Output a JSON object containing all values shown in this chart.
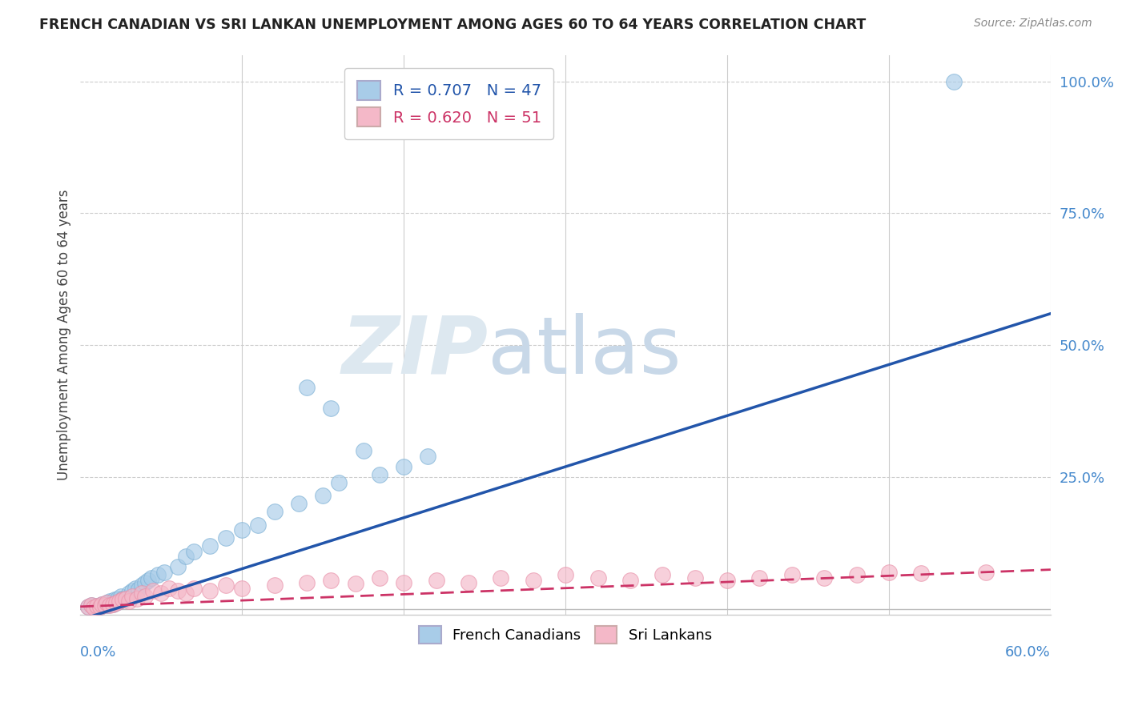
{
  "title": "FRENCH CANADIAN VS SRI LANKAN UNEMPLOYMENT AMONG AGES 60 TO 64 YEARS CORRELATION CHART",
  "source": "Source: ZipAtlas.com",
  "ylabel": "Unemployment Among Ages 60 to 64 years",
  "xlim": [
    0.0,
    0.6
  ],
  "ylim": [
    -0.01,
    1.05
  ],
  "french_canadian_R": 0.707,
  "french_canadian_N": 47,
  "sri_lankan_R": 0.62,
  "sri_lankan_N": 51,
  "fc_color": "#a8cce8",
  "sl_color": "#f4b8c8",
  "fc_edge_color": "#7bafd4",
  "sl_edge_color": "#e890a8",
  "fc_line_color": "#2255aa",
  "sl_line_color": "#cc3366",
  "watermark_zip": "ZIP",
  "watermark_atlas": "atlas",
  "background_color": "#ffffff",
  "fc_scatter_x": [
    0.005,
    0.007,
    0.008,
    0.01,
    0.012,
    0.013,
    0.015,
    0.016,
    0.017,
    0.018,
    0.02,
    0.021,
    0.022,
    0.023,
    0.024,
    0.025,
    0.026,
    0.027,
    0.028,
    0.03,
    0.032,
    0.034,
    0.036,
    0.038,
    0.04,
    0.042,
    0.044,
    0.048,
    0.052,
    0.06,
    0.065,
    0.07,
    0.08,
    0.09,
    0.1,
    0.11,
    0.12,
    0.135,
    0.15,
    0.16,
    0.185,
    0.2,
    0.215,
    0.14,
    0.155,
    0.175,
    0.54
  ],
  "fc_scatter_y": [
    0.005,
    0.008,
    0.003,
    0.006,
    0.004,
    0.01,
    0.008,
    0.012,
    0.007,
    0.015,
    0.01,
    0.018,
    0.012,
    0.02,
    0.015,
    0.025,
    0.02,
    0.018,
    0.022,
    0.03,
    0.035,
    0.04,
    0.038,
    0.045,
    0.05,
    0.055,
    0.06,
    0.065,
    0.07,
    0.08,
    0.1,
    0.11,
    0.12,
    0.135,
    0.15,
    0.16,
    0.185,
    0.2,
    0.215,
    0.24,
    0.255,
    0.27,
    0.29,
    0.42,
    0.38,
    0.3,
    1.0
  ],
  "sl_scatter_x": [
    0.005,
    0.007,
    0.008,
    0.01,
    0.012,
    0.013,
    0.015,
    0.016,
    0.018,
    0.02,
    0.022,
    0.024,
    0.026,
    0.028,
    0.03,
    0.032,
    0.035,
    0.038,
    0.04,
    0.045,
    0.05,
    0.055,
    0.06,
    0.065,
    0.07,
    0.08,
    0.09,
    0.1,
    0.12,
    0.14,
    0.155,
    0.17,
    0.185,
    0.2,
    0.22,
    0.24,
    0.26,
    0.28,
    0.3,
    0.32,
    0.34,
    0.36,
    0.38,
    0.4,
    0.42,
    0.44,
    0.46,
    0.48,
    0.5,
    0.52,
    0.56
  ],
  "sl_scatter_y": [
    0.005,
    0.008,
    0.003,
    0.006,
    0.004,
    0.01,
    0.008,
    0.012,
    0.007,
    0.01,
    0.012,
    0.015,
    0.018,
    0.02,
    0.015,
    0.025,
    0.02,
    0.03,
    0.025,
    0.035,
    0.03,
    0.04,
    0.035,
    0.03,
    0.04,
    0.035,
    0.045,
    0.04,
    0.045,
    0.05,
    0.055,
    0.048,
    0.06,
    0.05,
    0.055,
    0.05,
    0.06,
    0.055,
    0.065,
    0.06,
    0.055,
    0.065,
    0.06,
    0.055,
    0.06,
    0.065,
    0.06,
    0.065,
    0.07,
    0.068,
    0.07
  ],
  "fc_trend_x0": 0.0,
  "fc_trend_y0": -0.02,
  "fc_trend_x1": 0.6,
  "fc_trend_y1": 0.56,
  "sl_trend_x0": 0.0,
  "sl_trend_y0": 0.005,
  "sl_trend_x1": 0.6,
  "sl_trend_y1": 0.075
}
